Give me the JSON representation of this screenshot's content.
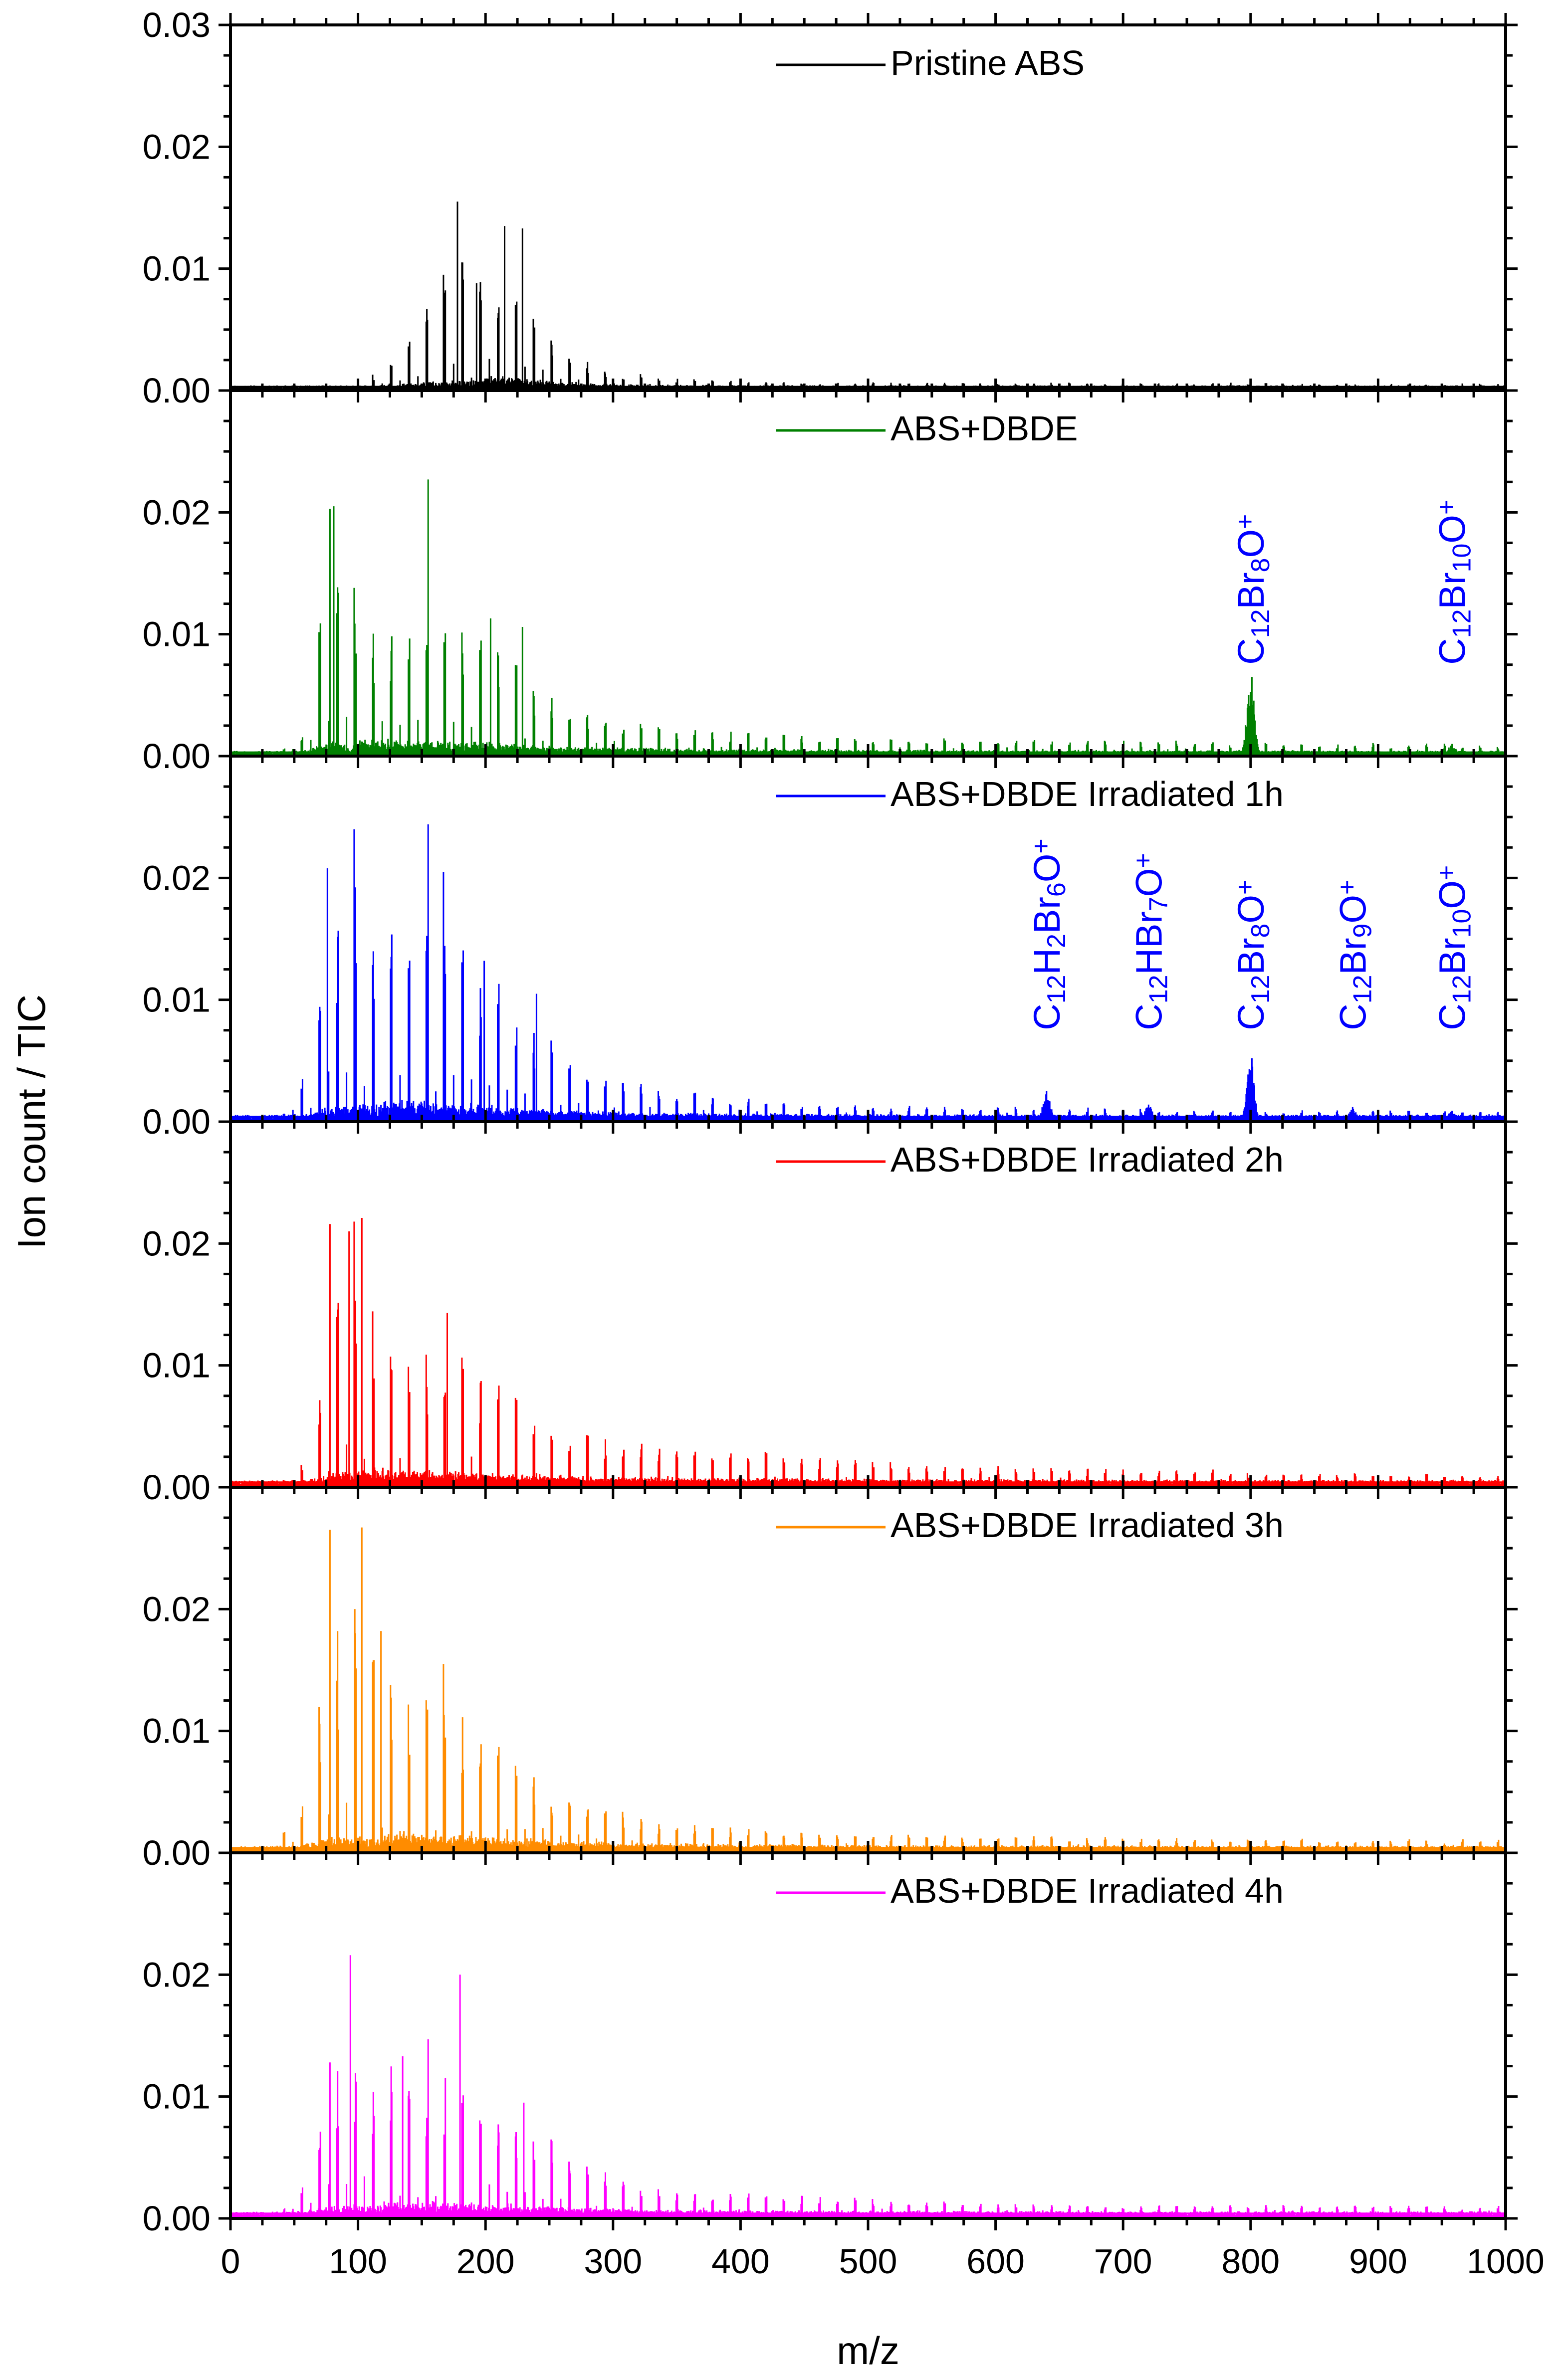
{
  "chart_data": {
    "type": "line",
    "xlabel": "m/z",
    "ylabel": "Ion count / TIC",
    "xlim": [
      0,
      1000
    ],
    "ylim": [
      0,
      0.03
    ],
    "x_ticks": [
      "0",
      "100",
      "200",
      "300",
      "400",
      "500",
      "600",
      "700",
      "800",
      "900",
      "1000"
    ],
    "y_ticks": [
      "0.00",
      "0.01",
      "0.02",
      "0.03"
    ],
    "panels": [
      {
        "legend": "Pristine ABS",
        "color": "#000000",
        "y_ticks": [
          "0.00",
          "0.01",
          "0.02",
          "0.03"
        ],
        "baseline": 0.0003,
        "decay": [
          0.0025,
          200,
          60
        ],
        "envelope": [
          [
            100,
            0.0
          ],
          [
            118,
            0.0015
          ],
          [
            140,
            0.004
          ],
          [
            165,
            0.009
          ],
          [
            185,
            0.011
          ],
          [
            210,
            0.009
          ],
          [
            230,
            0.007
          ],
          [
            260,
            0.003
          ],
          [
            300,
            0.0012
          ],
          [
            350,
            0.0007
          ],
          [
            450,
            0.0003
          ],
          [
            1000,
            0.0002
          ]
        ],
        "peaks": [
          [
            167,
            0.0095
          ],
          [
            178,
            0.0155
          ],
          [
            193,
            0.0088
          ],
          [
            215,
            0.0135
          ],
          [
            229,
            0.0133
          ]
        ],
        "ions": []
      },
      {
        "legend": "ABS+DBDE",
        "color": "#008000",
        "y_ticks": [
          "0.00",
          "0.01",
          "0.02"
        ],
        "baseline": 0.0003,
        "decay": [
          0.003,
          100,
          200
        ],
        "envelope": [
          [
            40,
            0.0
          ],
          [
            60,
            0.002
          ],
          [
            78,
            0.018
          ],
          [
            90,
            0.014
          ],
          [
            120,
            0.009
          ],
          [
            160,
            0.011
          ],
          [
            210,
            0.009
          ],
          [
            240,
            0.005
          ],
          [
            280,
            0.003
          ],
          [
            350,
            0.0018
          ],
          [
            500,
            0.0012
          ],
          [
            800,
            0.0008
          ],
          [
            1000,
            0.0006
          ]
        ],
        "peaks": [
          [
            78,
            0.0203
          ],
          [
            81,
            0.0205
          ],
          [
            97,
            0.0138
          ],
          [
            155,
            0.0227
          ],
          [
            204,
            0.0113
          ],
          [
            229,
            0.0106
          ],
          [
            801,
            0.0065
          ],
          [
            958,
            0.001
          ]
        ],
        "ions": [
          {
            "mz": 800,
            "parts": [
              [
                "C",
                ""
              ],
              [
                "12",
                "sub"
              ],
              [
                "Br",
                ""
              ],
              [
                "8",
                "sub"
              ],
              [
                "O",
                ""
              ],
              [
                "+",
                "sup"
              ]
            ]
          },
          {
            "mz": 958,
            "parts": [
              [
                "C",
                ""
              ],
              [
                "12",
                "sub"
              ],
              [
                "Br",
                ""
              ],
              [
                "10",
                "sub"
              ],
              [
                "O",
                ""
              ],
              [
                "+",
                "sup"
              ]
            ]
          }
        ]
      },
      {
        "legend": "ABS+DBDE Irradiated 1h",
        "color": "#0000FF",
        "y_ticks": [
          "0.00",
          "0.01",
          "0.02"
        ],
        "baseline": 0.0004,
        "decay": [
          0.003,
          120,
          150
        ],
        "envelope": [
          [
            40,
            0.0
          ],
          [
            60,
            0.004
          ],
          [
            78,
            0.016
          ],
          [
            100,
            0.019
          ],
          [
            150,
            0.016
          ],
          [
            200,
            0.012
          ],
          [
            240,
            0.007
          ],
          [
            280,
            0.004
          ],
          [
            350,
            0.002
          ],
          [
            500,
            0.0008
          ],
          [
            800,
            0.0005
          ],
          [
            1000,
            0.0004
          ]
        ],
        "peaks": [
          [
            76,
            0.0208
          ],
          [
            97,
            0.024
          ],
          [
            155,
            0.0244
          ],
          [
            167,
            0.0205
          ],
          [
            199,
            0.0132
          ],
          [
            240,
            0.0105
          ],
          [
            640,
            0.0025
          ],
          [
            720,
            0.0014
          ],
          [
            801,
            0.0052
          ],
          [
            880,
            0.0012
          ],
          [
            958,
            0.0009
          ]
        ],
        "ions": [
          {
            "mz": 640,
            "parts": [
              [
                "C",
                ""
              ],
              [
                "12",
                "sub"
              ],
              [
                "H",
                ""
              ],
              [
                "2",
                "sub"
              ],
              [
                "Br",
                ""
              ],
              [
                "6",
                "sub"
              ],
              [
                "O",
                ""
              ],
              [
                "+",
                "sup"
              ]
            ]
          },
          {
            "mz": 720,
            "parts": [
              [
                "C",
                ""
              ],
              [
                "12",
                "sub"
              ],
              [
                "HBr",
                ""
              ],
              [
                "7",
                "sub"
              ],
              [
                "O",
                ""
              ],
              [
                "+",
                "sup"
              ]
            ]
          },
          {
            "mz": 800,
            "parts": [
              [
                "C",
                ""
              ],
              [
                "12",
                "sub"
              ],
              [
                "Br",
                ""
              ],
              [
                "8",
                "sub"
              ],
              [
                "O",
                ""
              ],
              [
                "+",
                "sup"
              ]
            ]
          },
          {
            "mz": 880,
            "parts": [
              [
                "C",
                ""
              ],
              [
                "12",
                "sub"
              ],
              [
                "Br",
                ""
              ],
              [
                "9",
                "sub"
              ],
              [
                "O",
                ""
              ],
              [
                "+",
                "sup"
              ]
            ]
          },
          {
            "mz": 958,
            "parts": [
              [
                "C",
                ""
              ],
              [
                "12",
                "sub"
              ],
              [
                "Br",
                ""
              ],
              [
                "10",
                "sub"
              ],
              [
                "O",
                ""
              ],
              [
                "+",
                "sup"
              ]
            ]
          }
        ]
      },
      {
        "legend": "ABS+DBDE Irradiated 2h",
        "color": "#FF0000",
        "y_ticks": [
          "0.00",
          "0.01",
          "0.02"
        ],
        "baseline": 0.0004,
        "decay": [
          0.0025,
          100,
          250
        ],
        "envelope": [
          [
            40,
            0.0
          ],
          [
            62,
            0.002
          ],
          [
            78,
            0.015
          ],
          [
            100,
            0.016
          ],
          [
            140,
            0.01
          ],
          [
            175,
            0.011
          ],
          [
            220,
            0.007
          ],
          [
            260,
            0.004
          ],
          [
            320,
            0.003
          ],
          [
            450,
            0.0022
          ],
          [
            600,
            0.0012
          ],
          [
            800,
            0.0008
          ],
          [
            1000,
            0.0005
          ]
        ],
        "peaks": [
          [
            78,
            0.0216
          ],
          [
            93,
            0.021
          ],
          [
            97,
            0.0218
          ],
          [
            103,
            0.0221
          ],
          [
            170,
            0.0143
          ]
        ],
        "ions": []
      },
      {
        "legend": "ABS+DBDE Irradiated 3h",
        "color": "#FF8C00",
        "y_ticks": [
          "0.00",
          "0.01",
          "0.02"
        ],
        "baseline": 0.0004,
        "decay": [
          0.003,
          120,
          180
        ],
        "envelope": [
          [
            30,
            0.0
          ],
          [
            55,
            0.004
          ],
          [
            78,
            0.018
          ],
          [
            100,
            0.02
          ],
          [
            130,
            0.012
          ],
          [
            180,
            0.011
          ],
          [
            230,
            0.007
          ],
          [
            270,
            0.004
          ],
          [
            330,
            0.002
          ],
          [
            450,
            0.0012
          ],
          [
            700,
            0.0008
          ],
          [
            1000,
            0.0006
          ]
        ],
        "peaks": [
          [
            78,
            0.0265
          ],
          [
            103,
            0.0267
          ],
          [
            118,
            0.0182
          ],
          [
            167,
            0.0155
          ]
        ],
        "ions": []
      },
      {
        "legend": "ABS+DBDE Irradiated 4h",
        "color": "#FF00FF",
        "y_ticks": [
          "0.00",
          "0.01",
          "0.02"
        ],
        "baseline": 0.0004,
        "decay": [
          0.002,
          120,
          200
        ],
        "envelope": [
          [
            40,
            0.0
          ],
          [
            60,
            0.003
          ],
          [
            78,
            0.011
          ],
          [
            100,
            0.014
          ],
          [
            140,
            0.011
          ],
          [
            180,
            0.011
          ],
          [
            230,
            0.008
          ],
          [
            270,
            0.005
          ],
          [
            320,
            0.002
          ],
          [
            400,
            0.0015
          ],
          [
            600,
            0.0008
          ],
          [
            1000,
            0.0005
          ]
        ],
        "peaks": [
          [
            94,
            0.0216
          ],
          [
            78,
            0.0128
          ],
          [
            135,
            0.0133
          ],
          [
            155,
            0.0147
          ],
          [
            180,
            0.02
          ],
          [
            230,
            0.0095
          ]
        ],
        "ions": []
      }
    ]
  }
}
